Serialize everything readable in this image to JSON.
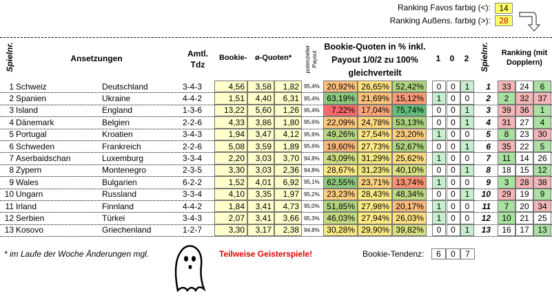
{
  "header": {
    "favos_label": "Ranking Favos farbig (<):",
    "favos_value": "14",
    "aussen_label": "Ranking Außens. farbig (>):",
    "aussen_value": "28"
  },
  "columns": {
    "spielnr": "Spielnr.",
    "ansetzungen": "Ansetzungen",
    "tdz": "Amtl. Tdz",
    "quoten_a": "Bookie-",
    "quoten_b": "ø-Quoten*",
    "payout": "potenzieller Payout",
    "percent": "Bookie-Quoten in % inkl. Payout 1/0/2 zu 100% gleichverteilt",
    "one": "1",
    "zero": "0",
    "two": "2",
    "spielnr2": "Spielnr.",
    "ranking": "Ranking (mit Dopplern)"
  },
  "rows": [
    {
      "nr": 1,
      "home": "Schweiz",
      "away": "Deutschland",
      "tdz": "3-4-3",
      "odds": [
        "4,56",
        "3,58",
        "1,82"
      ],
      "payout": "95,4%",
      "pct": [
        "20,92%",
        "26,65%",
        "52,42%"
      ],
      "tend": [
        0,
        0,
        1
      ],
      "nr2": 1,
      "rank": [
        33,
        24,
        6
      ]
    },
    {
      "nr": 2,
      "home": "Spanien",
      "away": "Ukraine",
      "tdz": "4-4-2",
      "odds": [
        "1,51",
        "4,40",
        "6,31"
      ],
      "payout": "95,4%",
      "pct": [
        "63,19%",
        "21,69%",
        "15,12%"
      ],
      "tend": [
        1,
        0,
        0
      ],
      "nr2": 2,
      "rank": [
        2,
        32,
        37
      ]
    },
    {
      "nr": 3,
      "home": "Island",
      "away": "England",
      "tdz": "1-3-6",
      "odds": [
        "13,22",
        "5,60",
        "1,26"
      ],
      "payout": "95,4%",
      "pct": [
        "7,22%",
        "17,04%",
        "75,74%"
      ],
      "tend": [
        0,
        0,
        1
      ],
      "nr2": 3,
      "rank": [
        39,
        36,
        1
      ]
    },
    {
      "nr": 4,
      "home": "Dänemark",
      "away": "Belgien",
      "tdz": "2-2-6",
      "odds": [
        "4,33",
        "3,86",
        "1,80"
      ],
      "payout": "95,6%",
      "pct": [
        "22,09%",
        "24,78%",
        "53,13%"
      ],
      "tend": [
        0,
        0,
        1
      ],
      "nr2": 4,
      "rank": [
        31,
        27,
        4
      ]
    },
    {
      "nr": 5,
      "home": "Portugal",
      "away": "Kroatien",
      "tdz": "3-4-3",
      "odds": [
        "1,94",
        "3,47",
        "4,12"
      ],
      "payout": "95,6%",
      "pct": [
        "49,26%",
        "27,54%",
        "23,20%"
      ],
      "tend": [
        1,
        0,
        0
      ],
      "nr2": 5,
      "rank": [
        8,
        23,
        30
      ]
    },
    {
      "nr": 6,
      "home": "Schweden",
      "away": "Frankreich",
      "tdz": "2-2-6",
      "odds": [
        "5,08",
        "3,59",
        "1,89"
      ],
      "payout": "95,6%",
      "pct": [
        "19,60%",
        "27,73%",
        "52,67%"
      ],
      "tend": [
        0,
        0,
        1
      ],
      "nr2": 6,
      "rank": [
        35,
        22,
        5
      ]
    },
    {
      "nr": 7,
      "home": "Aserbaidschan",
      "away": "Luxemburg",
      "tdz": "3-3-4",
      "odds": [
        "2,20",
        "3,03",
        "3,70"
      ],
      "payout": "94,8%",
      "pct": [
        "43,09%",
        "31,29%",
        "25,62%"
      ],
      "tend": [
        1,
        0,
        0
      ],
      "nr2": 7,
      "rank": [
        11,
        14,
        26
      ]
    },
    {
      "nr": 8,
      "home": "Zypern",
      "away": "Montenegro",
      "tdz": "2-3-5",
      "odds": [
        "3,30",
        "3,03",
        "2,36"
      ],
      "payout": "94,8%",
      "pct": [
        "28,67%",
        "31,23%",
        "40,10%"
      ],
      "tend": [
        0,
        0,
        1
      ],
      "nr2": 8,
      "rank": [
        18,
        15,
        12
      ]
    },
    {
      "nr": 9,
      "home": "Wales",
      "away": "Bulgarien",
      "tdz": "6-2-2",
      "odds": [
        "1,52",
        "4,01",
        "6,92"
      ],
      "payout": "95,1%",
      "pct": [
        "62,55%",
        "23,71%",
        "13,74%"
      ],
      "tend": [
        1,
        0,
        0
      ],
      "nr2": 9,
      "rank": [
        3,
        28,
        38
      ]
    },
    {
      "nr": 10,
      "home": "Ungarn",
      "away": "Russland",
      "tdz": "3-3-4",
      "odds": [
        "4,10",
        "3,35",
        "1,97"
      ],
      "payout": "95,2%",
      "pct": [
        "23,23%",
        "28,43%",
        "48,34%"
      ],
      "tend": [
        0,
        0,
        1
      ],
      "nr2": 10,
      "rank": [
        29,
        19,
        9
      ]
    },
    {
      "nr": 11,
      "home": "Irland",
      "away": "Finnland",
      "tdz": "4-4-2",
      "odds": [
        "1,84",
        "3,41",
        "4,73"
      ],
      "payout": "95,0%",
      "pct": [
        "51,85%",
        "27,98%",
        "20,17%"
      ],
      "tend": [
        1,
        0,
        0
      ],
      "nr2": 11,
      "rank": [
        7,
        20,
        34
      ]
    },
    {
      "nr": 12,
      "home": "Serbien",
      "away": "Türkei",
      "tdz": "3-4-3",
      "odds": [
        "2,07",
        "3,41",
        "3,66"
      ],
      "payout": "95,3%",
      "pct": [
        "46,03%",
        "27,94%",
        "26,03%"
      ],
      "tend": [
        1,
        0,
        0
      ],
      "nr2": 12,
      "rank": [
        10,
        21,
        25
      ]
    },
    {
      "nr": 13,
      "home": "Kosovo",
      "away": "Griechenland",
      "tdz": "1-2-7",
      "odds": [
        "3,30",
        "3,17",
        "2,38"
      ],
      "payout": "94,8%",
      "pct": [
        "30,28%",
        "29,90%",
        "39,82%"
      ],
      "tend": [
        0,
        0,
        1
      ],
      "nr2": 13,
      "rank": [
        16,
        17,
        13
      ]
    }
  ],
  "footer": {
    "note": "* im Laufe der Woche Änderungen mgl.",
    "warning": "Teilweise Geisterspiele!",
    "tendenz_label": "Bookie-Tendenz:",
    "tendenz": [
      6,
      0,
      7
    ]
  }
}
